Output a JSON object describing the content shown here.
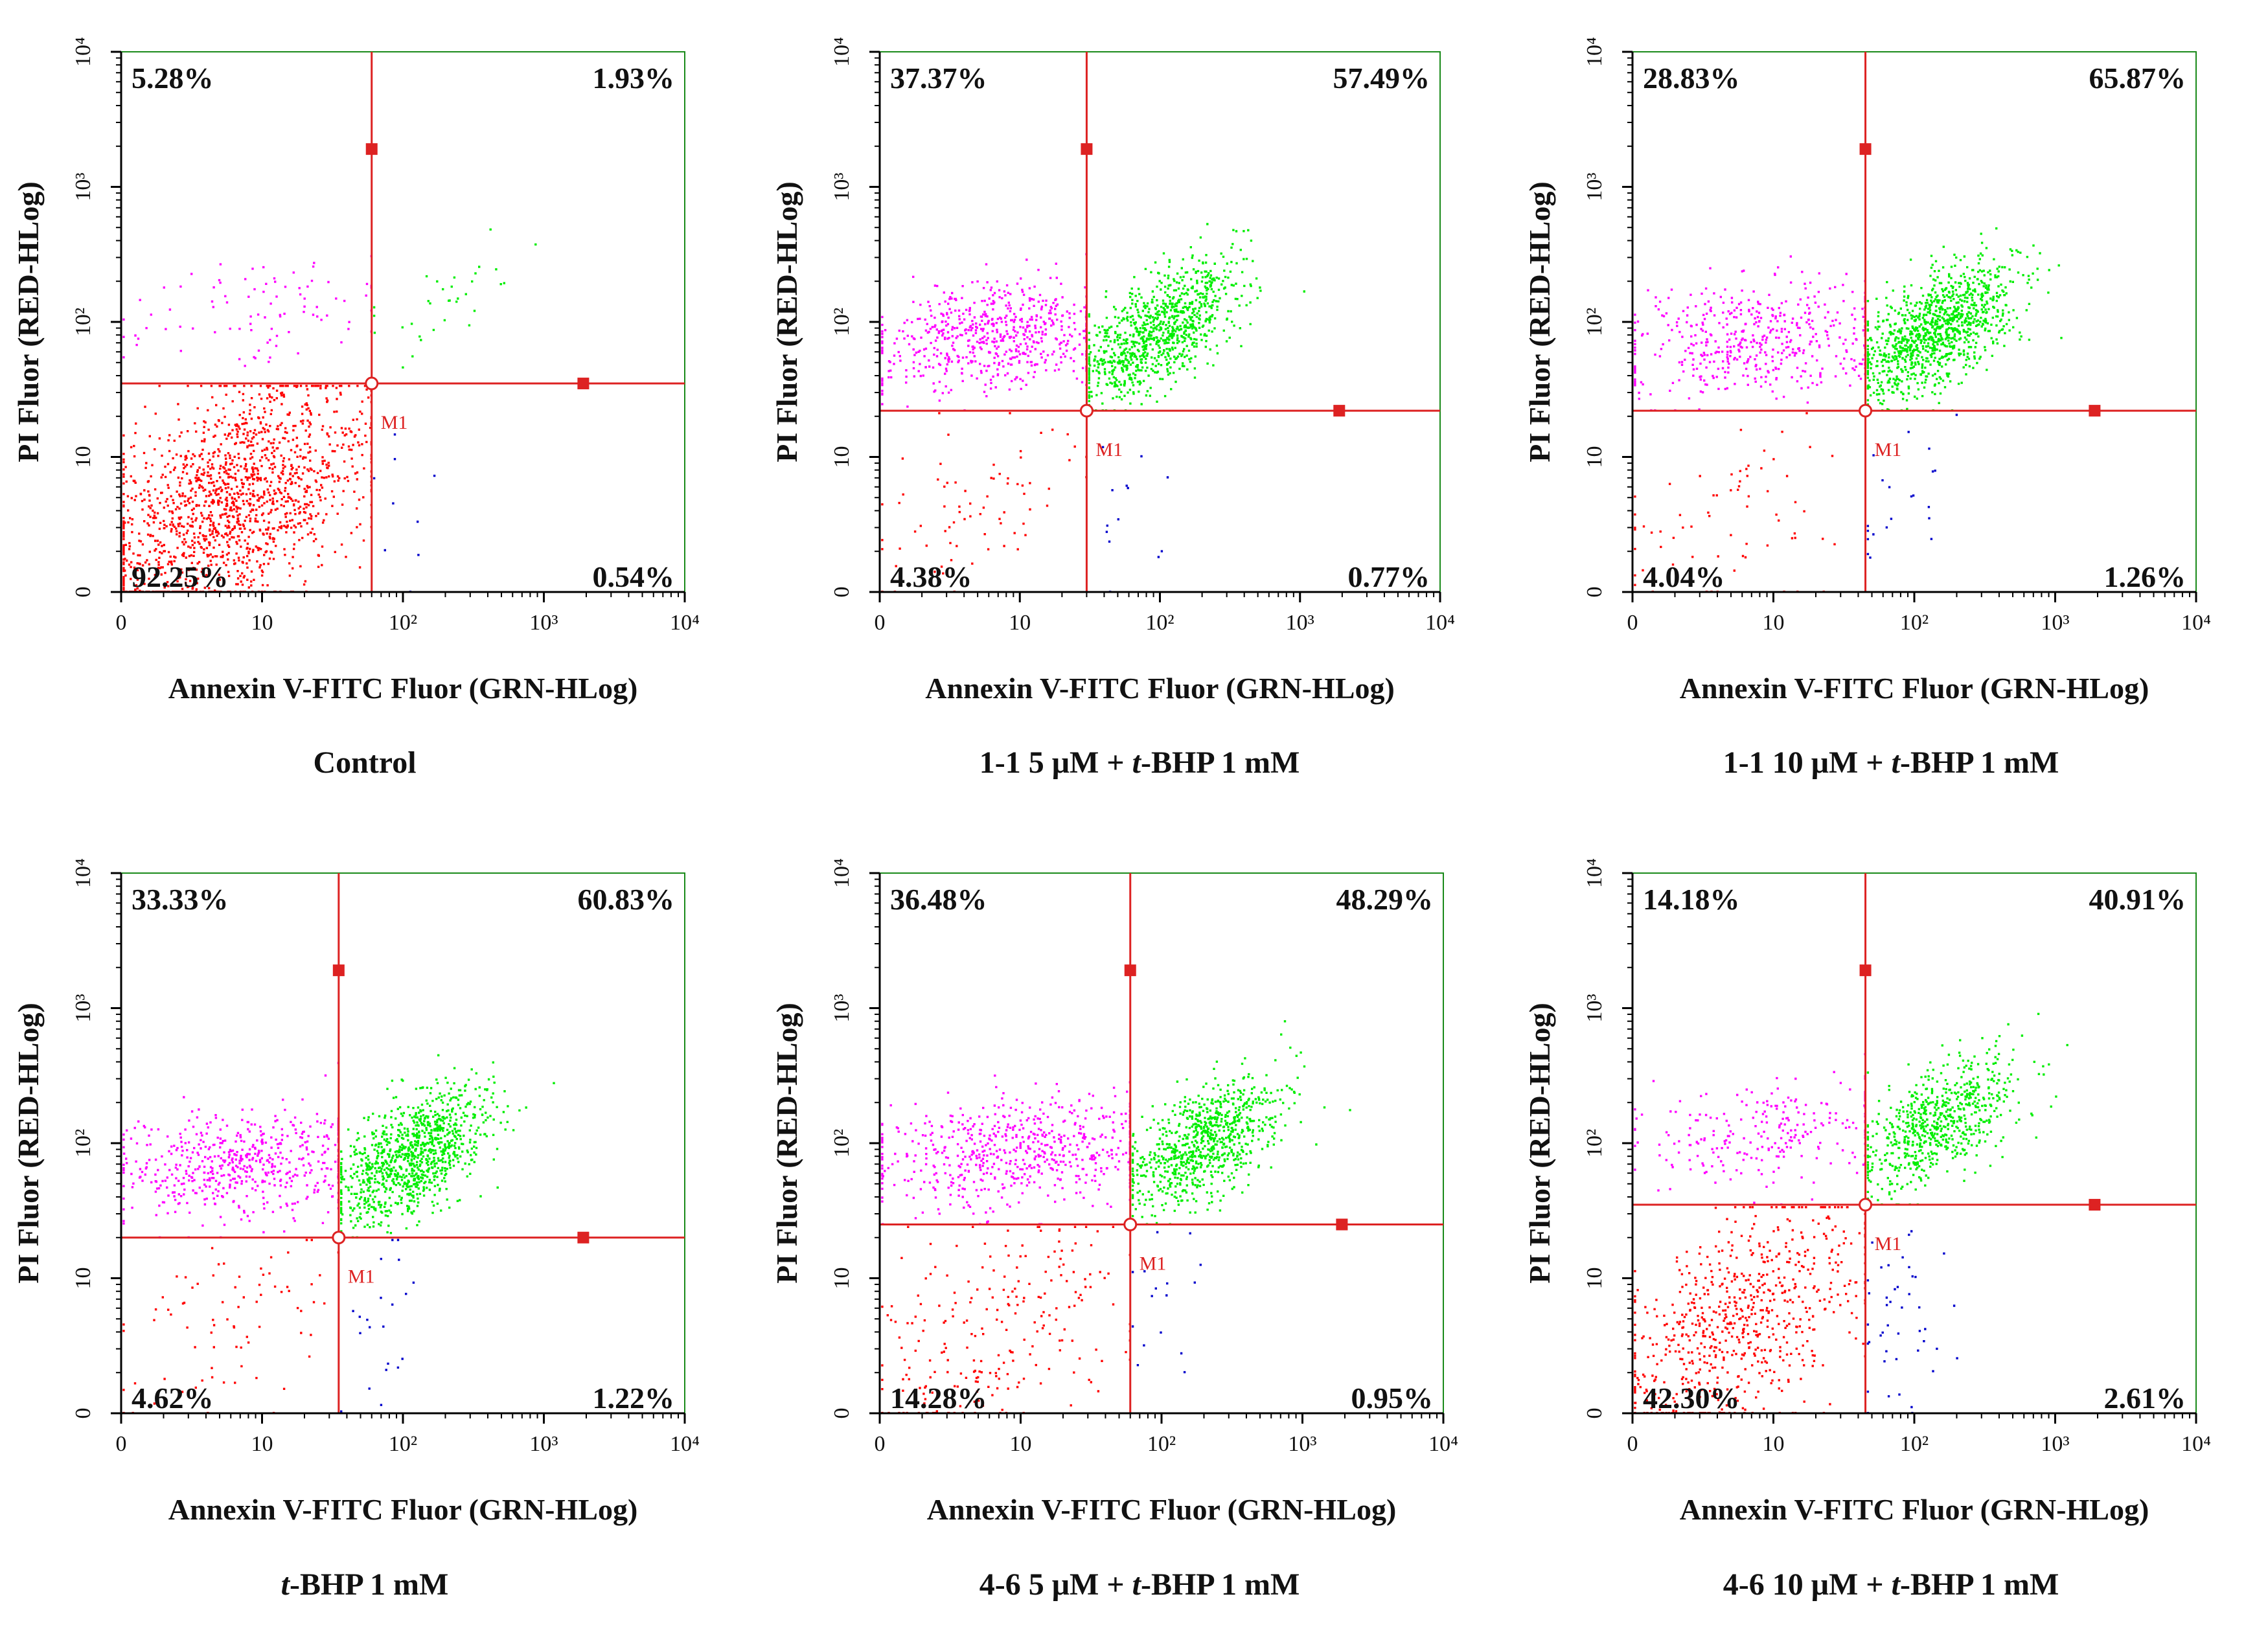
{
  "figure": {
    "colors": {
      "upper_left": "#ff00ff",
      "upper_right": "#00ee00",
      "lower_left": "#ff0000",
      "lower_right": "#0000cc",
      "gate": "#dd2222",
      "plot_border": "#1a8a1a",
      "axis": "#000000",
      "text": "#111111"
    },
    "gate_marker_label": "M1"
  },
  "chart_data": [
    {
      "type": "scatter",
      "title": "Control",
      "xlabel": "Annexin V-FITC Fluor (GRN-HLog)",
      "ylabel": "PI Fluor (RED-HLog)",
      "x_scale": "log",
      "y_scale": "log",
      "xlim": [
        1,
        10000
      ],
      "ylim": [
        1,
        10000
      ],
      "x_ticks": [
        "0",
        "10",
        "10²",
        "10³",
        "10⁴"
      ],
      "y_ticks": [
        "0",
        "10",
        "10²",
        "10³",
        "10⁴"
      ],
      "gate": {
        "x": 60,
        "y": 35
      },
      "quadrants": {
        "upper_left": "5.28%",
        "upper_right": "1.93%",
        "lower_left": "92.25%",
        "lower_right": "0.54%"
      }
    },
    {
      "type": "scatter",
      "title": "1-1 5 μM + t-BHP  1 mM",
      "title_parts": [
        "1-1 5 μM + ",
        "t",
        "-BHP  1 mM"
      ],
      "xlabel": "Annexin V-FITC Fluor (GRN-HLog)",
      "ylabel": "PI Fluor (RED-HLog)",
      "x_scale": "log",
      "y_scale": "log",
      "xlim": [
        1,
        10000
      ],
      "ylim": [
        1,
        10000
      ],
      "x_ticks": [
        "0",
        "10",
        "10²",
        "10³",
        "10⁴"
      ],
      "y_ticks": [
        "0",
        "10",
        "10²",
        "10³",
        "10⁴"
      ],
      "gate": {
        "x": 30,
        "y": 22
      },
      "quadrants": {
        "upper_left": "37.37%",
        "upper_right": "57.49%",
        "lower_left": "4.38%",
        "lower_right": "0.77%"
      }
    },
    {
      "type": "scatter",
      "title": "1-1 10 μM + t-BHP   1 mM",
      "title_parts": [
        "1-1 10 μM + ",
        "t",
        "-BHP   1 mM"
      ],
      "xlabel": "Annexin V-FITC Fluor (GRN-HLog)",
      "ylabel": "PI Fluor (RED-HLog)",
      "x_scale": "log",
      "y_scale": "log",
      "xlim": [
        1,
        10000
      ],
      "ylim": [
        1,
        10000
      ],
      "x_ticks": [
        "0",
        "10",
        "10²",
        "10³",
        "10⁴"
      ],
      "y_ticks": [
        "0",
        "10",
        "10²",
        "10³",
        "10⁴"
      ],
      "gate": {
        "x": 45,
        "y": 22
      },
      "quadrants": {
        "upper_left": "28.83%",
        "upper_right": "65.87%",
        "lower_left": "4.04%",
        "lower_right": "1.26%"
      }
    },
    {
      "type": "scatter",
      "title": "t-BHP   1 mM",
      "title_parts": [
        "",
        "t",
        "-BHP   1 mM"
      ],
      "xlabel": "Annexin V-FITC Fluor (GRN-HLog)",
      "ylabel": "PI Fluor (RED-HLog)",
      "x_scale": "log",
      "y_scale": "log",
      "xlim": [
        1,
        10000
      ],
      "ylim": [
        1,
        10000
      ],
      "x_ticks": [
        "0",
        "10",
        "10²",
        "10³",
        "10⁴"
      ],
      "y_ticks": [
        "0",
        "10",
        "10²",
        "10³",
        "10⁴"
      ],
      "gate": {
        "x": 35,
        "y": 20
      },
      "quadrants": {
        "upper_left": "33.33%",
        "upper_right": "60.83%",
        "lower_left": "4.62%",
        "lower_right": "1.22%"
      }
    },
    {
      "type": "scatter",
      "title": "4-6 5 μM + t-BHP  1 mM",
      "title_parts": [
        "4-6 5 μM + ",
        "t",
        "-BHP  1 mM"
      ],
      "xlabel": "Annexin V-FITC Fluor (GRN-HLog)",
      "ylabel": "PI Fluor (RED-HLog)",
      "x_scale": "log",
      "y_scale": "log",
      "xlim": [
        1,
        10000
      ],
      "ylim": [
        1,
        10000
      ],
      "x_ticks": [
        "0",
        "10",
        "10²",
        "10³",
        "10⁴"
      ],
      "y_ticks": [
        "0",
        "10",
        "10²",
        "10³",
        "10⁴"
      ],
      "gate": {
        "x": 60,
        "y": 25
      },
      "quadrants": {
        "upper_left": "36.48%",
        "upper_right": "48.29%",
        "lower_left": "14.28%",
        "lower_right": "0.95%"
      }
    },
    {
      "type": "scatter",
      "title": "4-6 10 μM + t-BHP   1 mM",
      "title_parts": [
        "4-6 10 μM + ",
        "t",
        "-BHP   1 mM"
      ],
      "xlabel": "Annexin V-FITC Fluor (GRN-HLog)",
      "ylabel": "PI Fluor (RED-HLog)",
      "x_scale": "log",
      "y_scale": "log",
      "xlim": [
        1,
        10000
      ],
      "ylim": [
        1,
        10000
      ],
      "x_ticks": [
        "0",
        "10",
        "10²",
        "10³",
        "10⁴"
      ],
      "y_ticks": [
        "0",
        "10",
        "10²",
        "10³",
        "10⁴"
      ],
      "gate": {
        "x": 45,
        "y": 35
      },
      "quadrants": {
        "upper_left": "14.18%",
        "upper_right": "40.91%",
        "lower_left": "42.30%",
        "lower_right": "2.61%"
      }
    }
  ]
}
